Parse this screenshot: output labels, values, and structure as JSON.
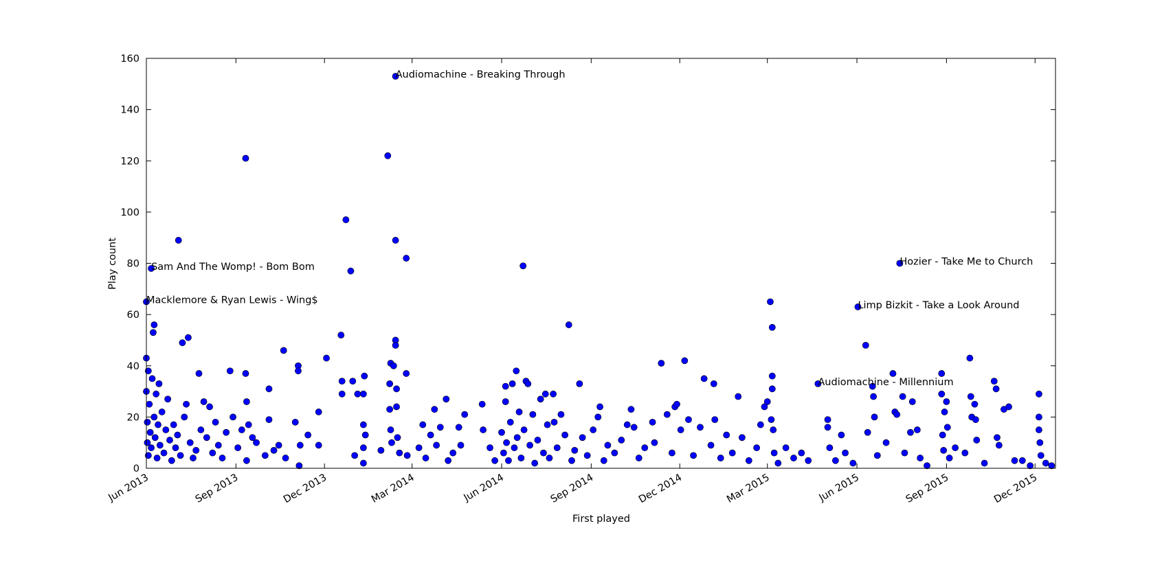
{
  "chart_data": {
    "type": "scatter",
    "xlabel": "First played",
    "ylabel": "Play count",
    "xlim": [
      "2013-06-01",
      "2015-12-22"
    ],
    "ylim": [
      0,
      160
    ],
    "xticks": [
      {
        "value": "2013-06-01",
        "label": "Jun 2013"
      },
      {
        "value": "2013-09-01",
        "label": "Sep 2013"
      },
      {
        "value": "2013-12-01",
        "label": "Dec 2013"
      },
      {
        "value": "2014-03-01",
        "label": "Mar 2014"
      },
      {
        "value": "2014-06-01",
        "label": "Jun 2014"
      },
      {
        "value": "2014-09-01",
        "label": "Sep 2014"
      },
      {
        "value": "2014-12-01",
        "label": "Dec 2014"
      },
      {
        "value": "2015-03-01",
        "label": "Mar 2015"
      },
      {
        "value": "2015-06-01",
        "label": "Jun 2015"
      },
      {
        "value": "2015-09-01",
        "label": "Sep 2015"
      },
      {
        "value": "2015-12-01",
        "label": "Dec 2015"
      }
    ],
    "yticks": [
      0,
      20,
      40,
      60,
      80,
      100,
      120,
      140,
      160
    ],
    "grid": false,
    "series": [
      {
        "color": "#0000ff",
        "x": [
          "2013-06-01",
          "2013-06-01",
          "2013-06-01",
          "2013-06-02",
          "2013-06-02",
          "2013-06-03",
          "2013-06-03",
          "2013-06-04",
          "2013-06-05",
          "2013-06-06",
          "2013-06-06",
          "2013-06-07",
          "2013-06-08",
          "2013-06-09",
          "2013-06-09",
          "2013-06-10",
          "2013-06-11",
          "2013-06-12",
          "2013-06-13",
          "2013-06-14",
          "2013-06-15",
          "2013-06-17",
          "2013-06-19",
          "2013-06-21",
          "2013-06-23",
          "2013-06-25",
          "2013-06-27",
          "2013-06-29",
          "2013-07-01",
          "2013-07-03",
          "2013-07-04",
          "2013-07-06",
          "2013-07-08",
          "2013-07-10",
          "2013-07-12",
          "2013-07-14",
          "2013-07-16",
          "2013-07-19",
          "2013-07-22",
          "2013-07-25",
          "2013-07-27",
          "2013-07-30",
          "2013-08-02",
          "2013-08-05",
          "2013-08-08",
          "2013-08-11",
          "2013-08-14",
          "2013-08-18",
          "2013-08-22",
          "2013-08-26",
          "2013-08-29",
          "2013-09-03",
          "2013-09-07",
          "2013-09-11",
          "2013-09-11",
          "2013-09-12",
          "2013-09-12",
          "2013-09-14",
          "2013-09-18",
          "2013-09-22",
          "2013-10-01",
          "2013-10-05",
          "2013-10-05",
          "2013-10-10",
          "2013-10-15",
          "2013-10-20",
          "2013-10-22",
          "2013-11-01",
          "2013-11-04",
          "2013-11-04",
          "2013-11-05",
          "2013-11-06",
          "2013-11-14",
          "2013-11-25",
          "2013-11-25",
          "2013-12-03",
          "2013-12-18",
          "2013-12-19",
          "2013-12-19",
          "2013-12-23",
          "2013-12-28",
          "2013-12-30",
          "2014-01-01",
          "2014-01-04",
          "2014-01-10",
          "2014-01-10",
          "2014-01-10",
          "2014-01-10",
          "2014-01-11",
          "2014-01-12",
          "2014-01-28",
          "2014-02-04",
          "2014-02-06",
          "2014-02-06",
          "2014-02-07",
          "2014-02-07",
          "2014-02-08",
          "2014-02-10",
          "2014-02-12",
          "2014-02-12",
          "2014-02-12",
          "2014-02-12",
          "2014-02-13",
          "2014-02-13",
          "2014-02-14",
          "2014-02-16",
          "2014-02-23",
          "2014-02-23",
          "2014-02-24",
          "2014-03-08",
          "2014-03-12",
          "2014-03-15",
          "2014-03-20",
          "2014-03-24",
          "2014-03-26",
          "2014-03-30",
          "2014-04-05",
          "2014-04-07",
          "2014-04-12",
          "2014-04-18",
          "2014-04-20",
          "2014-04-24",
          "2014-05-12",
          "2014-05-13",
          "2014-05-20",
          "2014-05-25",
          "2014-06-01",
          "2014-06-03",
          "2014-06-05",
          "2014-06-05",
          "2014-06-06",
          "2014-06-08",
          "2014-06-10",
          "2014-06-12",
          "2014-06-14",
          "2014-06-16",
          "2014-06-17",
          "2014-06-19",
          "2014-06-21",
          "2014-06-23",
          "2014-06-24",
          "2014-06-26",
          "2014-06-28",
          "2014-06-30",
          "2014-07-03",
          "2014-07-05",
          "2014-07-08",
          "2014-07-11",
          "2014-07-14",
          "2014-07-16",
          "2014-07-18",
          "2014-07-20",
          "2014-07-24",
          "2014-07-25",
          "2014-07-28",
          "2014-08-01",
          "2014-08-05",
          "2014-08-09",
          "2014-08-12",
          "2014-08-15",
          "2014-08-20",
          "2014-08-23",
          "2014-08-28",
          "2014-09-03",
          "2014-09-08",
          "2014-09-10",
          "2014-09-14",
          "2014-09-18",
          "2014-09-25",
          "2014-10-02",
          "2014-10-08",
          "2014-10-12",
          "2014-10-15",
          "2014-10-20",
          "2014-10-26",
          "2014-11-03",
          "2014-11-05",
          "2014-11-12",
          "2014-11-18",
          "2014-11-23",
          "2014-11-26",
          "2014-11-28",
          "2014-12-02",
          "2014-12-06",
          "2014-12-10",
          "2014-12-15",
          "2014-12-22",
          "2014-12-26",
          "2015-01-02",
          "2015-01-05",
          "2015-01-06",
          "2015-01-12",
          "2015-01-18",
          "2015-01-24",
          "2015-01-30",
          "2015-02-03",
          "2015-02-10",
          "2015-02-18",
          "2015-02-22",
          "2015-02-26",
          "2015-03-01",
          "2015-03-04",
          "2015-03-06",
          "2015-03-06",
          "2015-03-06",
          "2015-03-05",
          "2015-03-07",
          "2015-03-08",
          "2015-03-12",
          "2015-03-20",
          "2015-03-28",
          "2015-04-05",
          "2015-04-12",
          "2015-04-22",
          "2015-05-02",
          "2015-05-02",
          "2015-05-04",
          "2015-05-10",
          "2015-05-16",
          "2015-05-20",
          "2015-05-28",
          "2015-06-02",
          "2015-06-10",
          "2015-06-12",
          "2015-06-17",
          "2015-06-18",
          "2015-06-19",
          "2015-06-22",
          "2015-07-01",
          "2015-07-08",
          "2015-07-10",
          "2015-07-12",
          "2015-07-15",
          "2015-07-18",
          "2015-07-20",
          "2015-07-26",
          "2015-07-28",
          "2015-08-02",
          "2015-08-05",
          "2015-08-12",
          "2015-08-27",
          "2015-08-27",
          "2015-08-28",
          "2015-08-29",
          "2015-08-30",
          "2015-09-01",
          "2015-09-02",
          "2015-09-04",
          "2015-09-10",
          "2015-09-20",
          "2015-09-25",
          "2015-09-26",
          "2015-09-27",
          "2015-09-30",
          "2015-10-01",
          "2015-10-02",
          "2015-10-10",
          "2015-10-20",
          "2015-10-22",
          "2015-10-23",
          "2015-10-25",
          "2015-10-30",
          "2015-11-04",
          "2015-11-10",
          "2015-11-18",
          "2015-11-26",
          "2015-12-05",
          "2015-12-05",
          "2015-12-05",
          "2015-12-06",
          "2015-12-07",
          "2015-12-12",
          "2015-12-18"
        ],
        "values": [
          43,
          30,
          65,
          18,
          10,
          38,
          5,
          25,
          14,
          8,
          78,
          35,
          53,
          56,
          20,
          12,
          29,
          4,
          17,
          33,
          9,
          22,
          6,
          15,
          27,
          11,
          3,
          17,
          8,
          13,
          89,
          5,
          49,
          20,
          25,
          51,
          10,
          4,
          7,
          37,
          15,
          26,
          12,
          24,
          6,
          18,
          9,
          4,
          14,
          38,
          20,
          8,
          15,
          121,
          37,
          26,
          3,
          17,
          12,
          10,
          5,
          31,
          19,
          7,
          9,
          46,
          4,
          18,
          40,
          38,
          1,
          9,
          13,
          22,
          9,
          43,
          52,
          34,
          29,
          97,
          77,
          34,
          5,
          29,
          29,
          17,
          8,
          2,
          36,
          13,
          7,
          122,
          33,
          23,
          41,
          15,
          10,
          40,
          153,
          89,
          50,
          48,
          31,
          24,
          12,
          6,
          82,
          37,
          5,
          8,
          17,
          4,
          13,
          23,
          9,
          16,
          27,
          3,
          6,
          16,
          9,
          21,
          25,
          15,
          8,
          3,
          14,
          6,
          32,
          26,
          10,
          3,
          18,
          33,
          8,
          38,
          12,
          22,
          4,
          79,
          15,
          34,
          33,
          9,
          21,
          2,
          11,
          27,
          6,
          29,
          17,
          4,
          29,
          18,
          8,
          21,
          13,
          56,
          3,
          7,
          33,
          12,
          5,
          15,
          20,
          24,
          3,
          9,
          6,
          11,
          17,
          23,
          16,
          4,
          8,
          18,
          10,
          41,
          21,
          6,
          24,
          25,
          15,
          42,
          19,
          5,
          16,
          35,
          9,
          33,
          19,
          4,
          13,
          6,
          28,
          12,
          3,
          8,
          17,
          24,
          26,
          65,
          55,
          36,
          31,
          19,
          15,
          6,
          2,
          8,
          4,
          6,
          3,
          33,
          19,
          16,
          8,
          3,
          13,
          6,
          2,
          63,
          48,
          14,
          32,
          28,
          20,
          5,
          10,
          37,
          22,
          21,
          80,
          28,
          6,
          14,
          26,
          15,
          4,
          1,
          37,
          29,
          13,
          7,
          22,
          26,
          16,
          4,
          8,
          6,
          43,
          28,
          20,
          25,
          19,
          11,
          2,
          34,
          31,
          12,
          9,
          23,
          24,
          3,
          3,
          1,
          29,
          20,
          15,
          10,
          5,
          2,
          1
        ]
      }
    ],
    "annotations": [
      {
        "text": "Audiomachine - Breaking Through",
        "x": "2014-02-12",
        "y": 153
      },
      {
        "text": "Sam And The Womp! - Bom Bom",
        "x": "2013-06-06",
        "y": 78
      },
      {
        "text": "Macklemore & Ryan Lewis - Wing$",
        "x": "2013-06-01",
        "y": 65
      },
      {
        "text": "Hozier - Take Me to Church",
        "x": "2015-07-15",
        "y": 80
      },
      {
        "text": "Limp Bizkit - Take a Look Around",
        "x": "2015-06-02",
        "y": 63
      },
      {
        "text": "Audiomachine - Millennium",
        "x": "2015-04-22",
        "y": 33
      }
    ]
  }
}
